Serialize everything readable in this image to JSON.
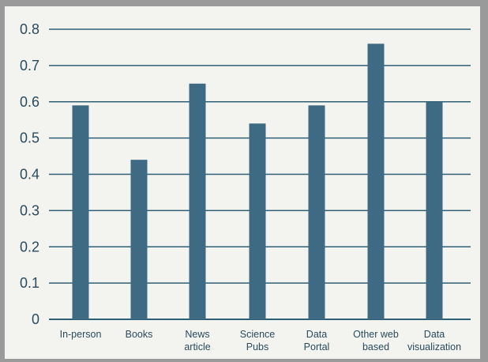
{
  "chart_data": {
    "type": "bar",
    "categories": [
      "In-person",
      "Books",
      "News article",
      "Science Pubs",
      "Data Portal",
      "Other web based",
      "Data visualization"
    ],
    "category_label_lines": [
      [
        "In-person"
      ],
      [
        "Books"
      ],
      [
        "News",
        "article"
      ],
      [
        "Science",
        "Pubs"
      ],
      [
        "Data",
        "Portal"
      ],
      [
        "Other web",
        "based"
      ],
      [
        "Data",
        "visualization"
      ]
    ],
    "values": [
      0.59,
      0.44,
      0.65,
      0.54,
      0.59,
      0.76,
      0.6
    ],
    "y_ticks": [
      0,
      0.1,
      0.2,
      0.3,
      0.4,
      0.5,
      0.6,
      0.7,
      0.8
    ],
    "y_tick_labels": [
      "0",
      "0.1",
      "0.2",
      "0.3",
      "0.4",
      "0.5",
      "0.6",
      "0.7",
      "0.8"
    ],
    "ylim": [
      0,
      0.8
    ],
    "title": "",
    "xlabel": "",
    "ylabel": "",
    "grid": true,
    "legend": "none",
    "colors": {
      "bar": "#3f6a83",
      "grid": "#2f5f74",
      "text": "#2a4a5e",
      "background": "#f3f4ef"
    }
  }
}
